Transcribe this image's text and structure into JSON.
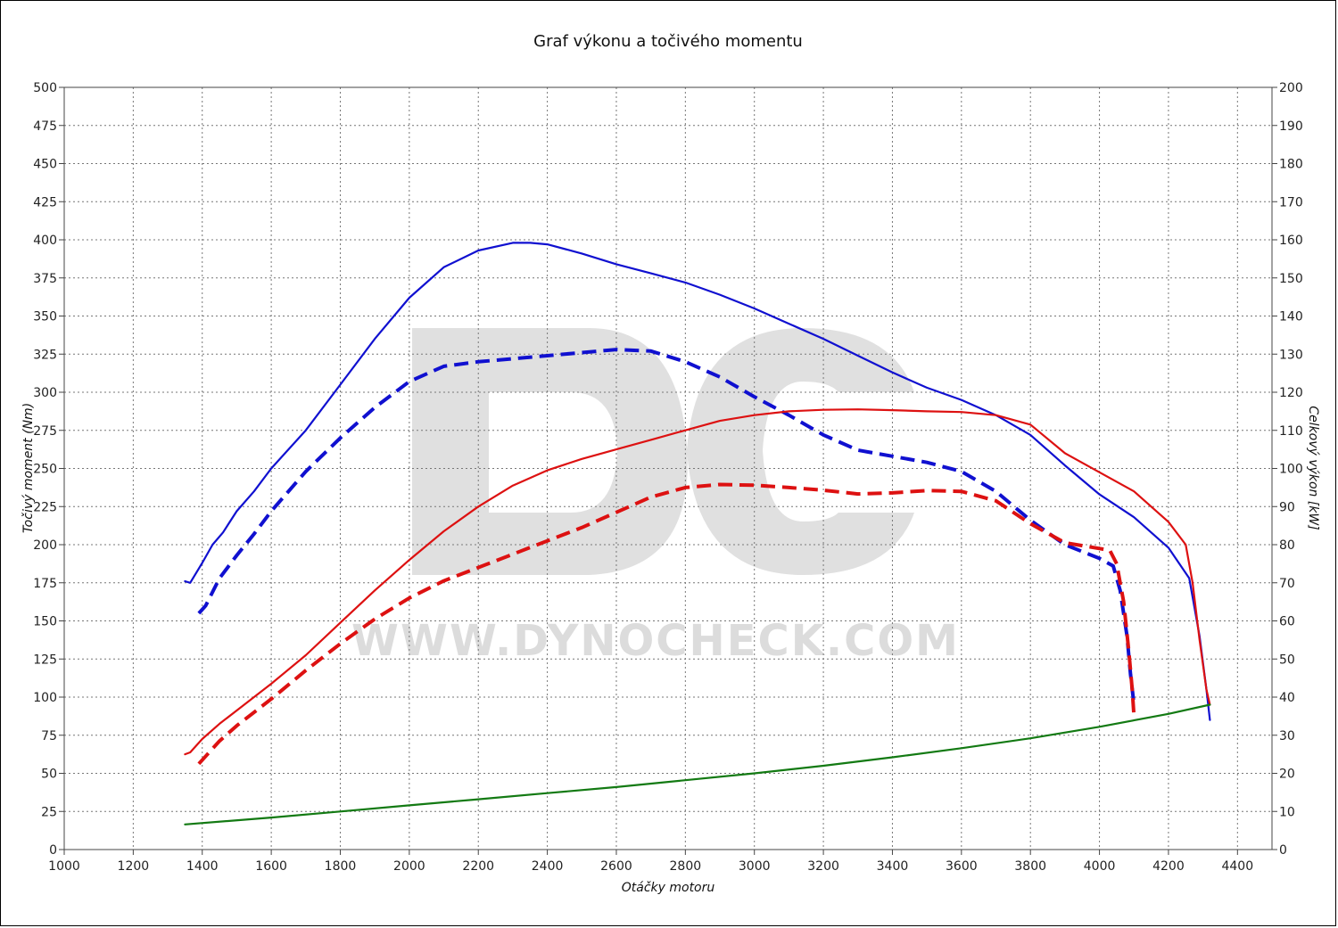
{
  "chart_data": {
    "type": "line",
    "title": "Graf výkonu a točivého momentu",
    "xlabel": "Otáčky motoru",
    "ylabel_left": "Točivý moment (Nm)",
    "ylabel_right": "Celkový výkon [kW]",
    "watermark": "WWW.DYNOCHECK.COM",
    "watermark_logo": "DC",
    "xlim": [
      1000,
      4500
    ],
    "ylim_left": [
      0,
      500
    ],
    "ylim_right": [
      0,
      200
    ],
    "x_ticks": [
      1000,
      1200,
      1400,
      1600,
      1800,
      2000,
      2200,
      2400,
      2600,
      2800,
      3000,
      3200,
      3400,
      3600,
      3800,
      4000,
      4200,
      4400
    ],
    "y_ticks_left": [
      0,
      25,
      50,
      75,
      100,
      125,
      150,
      175,
      200,
      225,
      250,
      275,
      300,
      325,
      350,
      375,
      400,
      425,
      450,
      475,
      500
    ],
    "y_ticks_right": [
      0,
      10,
      20,
      30,
      40,
      50,
      60,
      70,
      80,
      90,
      100,
      110,
      120,
      130,
      140,
      150,
      160,
      170,
      180,
      190,
      200
    ],
    "grid": true,
    "series": [
      {
        "color": "#1010d0",
        "style": "solid",
        "axis": "left",
        "x": [
          1350,
          1365,
          1400,
          1430,
          1460,
          1500,
          1550,
          1600,
          1700,
          1800,
          1900,
          2000,
          2100,
          2200,
          2300,
          2350,
          2400,
          2500,
          2600,
          2700,
          2800,
          2900,
          3000,
          3100,
          3200,
          3300,
          3400,
          3500,
          3600,
          3700,
          3800,
          3900,
          4000,
          4100,
          4200,
          4260,
          4290,
          4310,
          4320
        ],
        "y": [
          176,
          175,
          188,
          200,
          208,
          222,
          235,
          250,
          275,
          305,
          335,
          362,
          382,
          393,
          398,
          398,
          397,
          391,
          384,
          378,
          372,
          364,
          355,
          345,
          335,
          324,
          313,
          303,
          295,
          285,
          272,
          252,
          233,
          218,
          198,
          178,
          140,
          105,
          85
        ]
      },
      {
        "color": "#1010d0",
        "style": "dashed",
        "axis": "left",
        "x": [
          1390,
          1410,
          1450,
          1500,
          1550,
          1600,
          1700,
          1800,
          1900,
          2000,
          2100,
          2200,
          2300,
          2400,
          2500,
          2600,
          2700,
          2800,
          2900,
          3000,
          3100,
          3200,
          3300,
          3400,
          3500,
          3600,
          3700,
          3800,
          3900,
          4000,
          4040,
          4060,
          4080,
          4090,
          4100
        ],
        "y": [
          155,
          160,
          178,
          193,
          207,
          222,
          248,
          270,
          290,
          307,
          317,
          320,
          322,
          324,
          326,
          328,
          327,
          320,
          310,
          297,
          285,
          272,
          262,
          258,
          254,
          248,
          235,
          216,
          200,
          191,
          186,
          170,
          140,
          115,
          95
        ]
      },
      {
        "color": "#dd1111",
        "style": "solid",
        "axis": "right",
        "x": [
          1350,
          1365,
          1400,
          1450,
          1500,
          1600,
          1700,
          1800,
          1900,
          2000,
          2100,
          2200,
          2300,
          2400,
          2500,
          2600,
          2700,
          2800,
          2900,
          3000,
          3100,
          3200,
          3300,
          3400,
          3500,
          3600,
          3700,
          3800,
          3900,
          4000,
          4100,
          4200,
          4250,
          4270,
          4290,
          4310,
          4320
        ],
        "y": [
          25,
          25.5,
          29,
          33,
          36.5,
          43.5,
          51,
          59.5,
          68,
          76,
          83.5,
          90,
          95.5,
          99.5,
          102.5,
          105,
          107.5,
          110,
          112.5,
          114,
          115,
          115.4,
          115.5,
          115.3,
          115,
          114.8,
          114,
          111.5,
          104,
          99,
          94,
          86,
          80,
          70,
          55,
          42,
          38
        ]
      },
      {
        "color": "#dd1111",
        "style": "dashed",
        "axis": "right",
        "x": [
          1390,
          1410,
          1450,
          1500,
          1600,
          1700,
          1800,
          1900,
          2000,
          2100,
          2200,
          2300,
          2400,
          2500,
          2600,
          2700,
          2800,
          2900,
          3000,
          3100,
          3200,
          3300,
          3400,
          3500,
          3600,
          3700,
          3800,
          3900,
          4000,
          4030,
          4050,
          4070,
          4085,
          4095,
          4100
        ],
        "y": [
          22.5,
          24.5,
          28.5,
          32.5,
          39.5,
          47,
          54,
          60.5,
          66,
          70.5,
          74,
          77.5,
          81,
          84.5,
          88.5,
          92.5,
          95,
          95.8,
          95.6,
          95,
          94.3,
          93.3,
          93.6,
          94.2,
          94,
          91.5,
          85.5,
          80.5,
          79,
          78.5,
          75,
          65,
          52,
          42,
          35
        ]
      },
      {
        "color": "#137a13",
        "style": "solid",
        "axis": "left",
        "x": [
          1350,
          1600,
          1800,
          2000,
          2200,
          2400,
          2600,
          2800,
          3000,
          3200,
          3400,
          3600,
          3800,
          4000,
          4200,
          4320
        ],
        "y": [
          16.5,
          21,
          25,
          29,
          33,
          37,
          41,
          45.5,
          50,
          55,
          60.5,
          66.5,
          73,
          80.5,
          89,
          95
        ]
      }
    ]
  }
}
